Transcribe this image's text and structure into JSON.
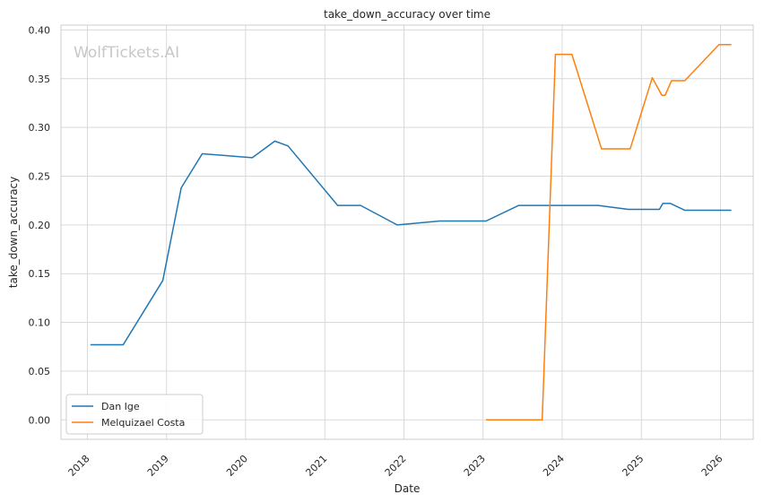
{
  "chart_data": {
    "type": "line",
    "title": "take_down_accuracy over time",
    "xlabel": "Date",
    "ylabel": "take_down_accuracy",
    "watermark": "WolfTickets.AI",
    "xlim": [
      "2017-09-01",
      "2026-06-01"
    ],
    "ylim": [
      -0.02,
      0.405
    ],
    "x_ticks": [
      "2018-01-01",
      "2019-01-01",
      "2020-01-01",
      "2021-01-01",
      "2022-01-01",
      "2023-01-01",
      "2024-01-01",
      "2025-01-01",
      "2026-01-01"
    ],
    "x_tick_labels": [
      "2018",
      "2019",
      "2020",
      "2021",
      "2022",
      "2023",
      "2024",
      "2025",
      "2026"
    ],
    "y_ticks": [
      0.0,
      0.05,
      0.1,
      0.15,
      0.2,
      0.25,
      0.3,
      0.35,
      0.4
    ],
    "y_tick_labels": [
      "0.00",
      "0.05",
      "0.10",
      "0.15",
      "0.20",
      "0.25",
      "0.30",
      "0.35",
      "0.40"
    ],
    "grid": true,
    "legend_position": "lower-left",
    "series": [
      {
        "name": "Dan Ige",
        "color": "#1f77b4",
        "points": [
          [
            "2018-01-15",
            0.077
          ],
          [
            "2018-06-15",
            0.077
          ],
          [
            "2018-12-15",
            0.143
          ],
          [
            "2019-03-10",
            0.238
          ],
          [
            "2019-06-15",
            0.273
          ],
          [
            "2020-02-01",
            0.269
          ],
          [
            "2020-05-15",
            0.286
          ],
          [
            "2020-07-15",
            0.281
          ],
          [
            "2021-03-01",
            0.22
          ],
          [
            "2021-06-15",
            0.22
          ],
          [
            "2021-12-01",
            0.2
          ],
          [
            "2022-06-15",
            0.204
          ],
          [
            "2023-01-15",
            0.204
          ],
          [
            "2023-06-15",
            0.22
          ],
          [
            "2024-06-15",
            0.22
          ],
          [
            "2024-11-01",
            0.216
          ],
          [
            "2025-03-25",
            0.216
          ],
          [
            "2025-04-10",
            0.222
          ],
          [
            "2025-05-15",
            0.222
          ],
          [
            "2025-07-20",
            0.215
          ],
          [
            "2026-02-20",
            0.215
          ]
        ]
      },
      {
        "name": "Melquizael Costa",
        "color": "#ff7f0e",
        "points": [
          [
            "2023-01-15",
            0.0
          ],
          [
            "2023-10-01",
            0.0
          ],
          [
            "2023-12-01",
            0.375
          ],
          [
            "2024-02-15",
            0.375
          ],
          [
            "2024-07-01",
            0.278
          ],
          [
            "2024-11-10",
            0.278
          ],
          [
            "2025-02-20",
            0.351
          ],
          [
            "2025-04-05",
            0.333
          ],
          [
            "2025-04-20",
            0.333
          ],
          [
            "2025-05-20",
            0.348
          ],
          [
            "2025-07-20",
            0.348
          ],
          [
            "2025-12-25",
            0.385
          ],
          [
            "2026-02-20",
            0.385
          ]
        ]
      }
    ]
  }
}
